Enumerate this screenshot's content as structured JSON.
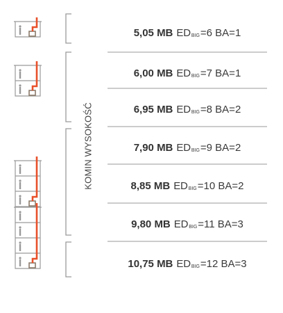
{
  "vertical_label": "KOMIN WYSOKOŚĆ",
  "rows": [
    {
      "mb": "5,05 MB",
      "ed_prefix": "ED",
      "ed_sub": "BIG",
      "rest": "=6 BA=1"
    },
    {
      "mb": "6,00 MB",
      "ed_prefix": "ED",
      "ed_sub": "BIG",
      "rest": "=7 BA=1"
    },
    {
      "mb": "6,95 MB",
      "ed_prefix": "ED",
      "ed_sub": "BIG",
      "rest": "=8 BA=2"
    },
    {
      "mb": "7,90 MB",
      "ed_prefix": "ED",
      "ed_sub": "BIG",
      "rest": "=9 BA=2"
    },
    {
      "mb": "8,85 MB",
      "ed_prefix": "ED",
      "ed_sub": "BIG",
      "rest": "=10 BA=2"
    },
    {
      "mb": "9,80 MB",
      "ed_prefix": "ED",
      "ed_sub": "BIG",
      "rest": "=11 BA=3"
    },
    {
      "mb": "10,75 MB",
      "ed_prefix": "ED",
      "ed_sub": "BIG",
      "rest": "=12 BA=3"
    }
  ],
  "icons": [
    {
      "name": "building-1-floor-icon",
      "floors": 1
    },
    {
      "name": "building-2-floor-icon",
      "floors": 2
    },
    {
      "name": "building-3-floor-icon",
      "floors": 3
    },
    {
      "name": "building-4-floor-icon",
      "floors": 4
    }
  ],
  "colors": {
    "chimney": "#e8502a",
    "line": "#9a9a9a",
    "text": "#3a3a3a",
    "building": "#9a9a9a",
    "boiler": "#8a7a6a"
  }
}
